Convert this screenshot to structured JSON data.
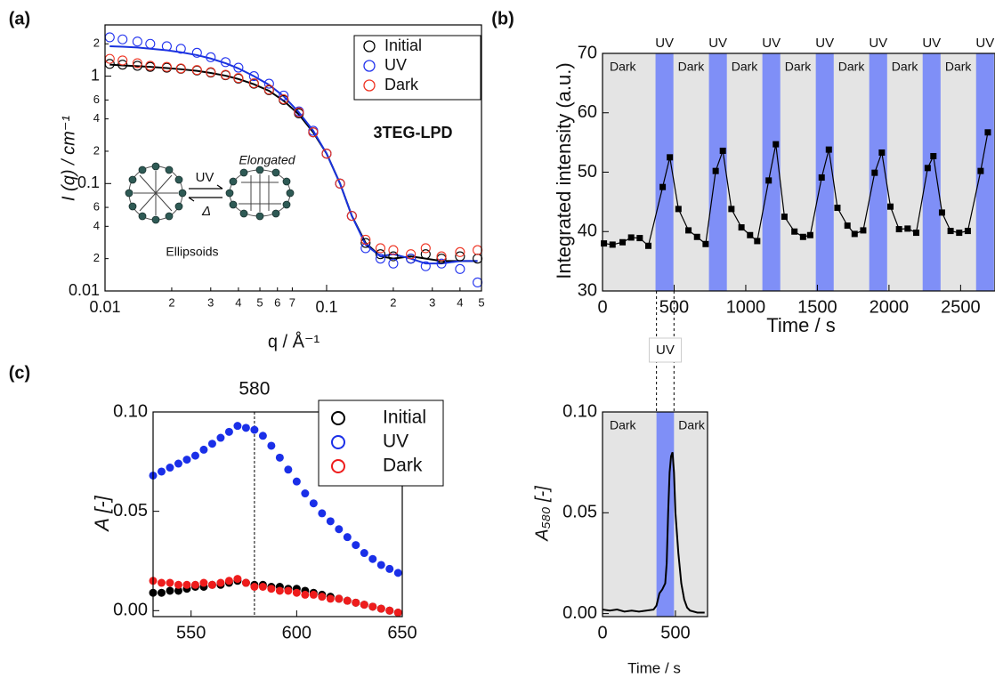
{
  "chart_data": [
    {
      "type": "scatter",
      "panel": "(a)",
      "log_scale": true,
      "marker": "open",
      "x_label": "q / Å⁻¹",
      "y_label": "I (q) / cm⁻¹",
      "label": "3TEG-LPD",
      "diagram": {
        "forward": "UV",
        "reverse": "Δ",
        "shape": "Elongated",
        "caption": "Ellipsoids"
      },
      "xlim": [
        0.01,
        0.5
      ],
      "ylim": [
        0.01,
        3
      ],
      "xticks": [
        0.01,
        {
          "value": 0.02,
          "label": "2"
        },
        {
          "value": 0.03,
          "label": "3"
        },
        {
          "value": 0.04,
          "label": "4"
        },
        {
          "value": 0.05,
          "label": "5"
        },
        {
          "value": 0.06,
          "label": "6"
        },
        {
          "value": 0.07,
          "label": "7"
        },
        0.1,
        {
          "value": 0.2,
          "label": "2"
        },
        {
          "value": 0.3,
          "label": "3"
        },
        {
          "value": 0.4,
          "label": "4"
        },
        {
          "value": 0.5,
          "label": "5"
        }
      ],
      "yticks": [
        0.01,
        {
          "value": 0.02,
          "label": "2"
        },
        {
          "value": 0.04,
          "label": "4"
        },
        {
          "value": 0.06,
          "label": "6"
        },
        0.1,
        {
          "value": 0.2,
          "label": "2"
        },
        {
          "value": 0.4,
          "label": "4"
        },
        {
          "value": 0.6,
          "label": "6"
        },
        1,
        {
          "value": 2,
          "label": "2"
        }
      ],
      "x": [
        0.0105,
        0.012,
        0.014,
        0.016,
        0.019,
        0.022,
        0.026,
        0.03,
        0.035,
        0.04,
        0.047,
        0.055,
        0.064,
        0.075,
        0.087,
        0.1,
        0.115,
        0.13,
        0.15,
        0.175,
        0.2,
        0.24,
        0.28,
        0.33,
        0.4,
        0.48
      ],
      "series": [
        {
          "name": "Initial",
          "color": "#000000",
          "values": [
            1.3,
            1.28,
            1.25,
            1.22,
            1.2,
            1.17,
            1.13,
            1.08,
            1.02,
            0.95,
            0.85,
            0.74,
            0.6,
            0.45,
            0.3,
            0.19,
            0.1,
            0.05,
            0.028,
            0.022,
            0.021,
            0.02,
            0.022,
            0.02,
            0.021,
            0.02
          ]
        },
        {
          "name": "UV",
          "color": "#2233ee",
          "values": [
            2.3,
            2.2,
            2.1,
            2.0,
            1.9,
            1.8,
            1.65,
            1.5,
            1.35,
            1.2,
            1.0,
            0.85,
            0.66,
            0.47,
            0.31,
            0.19,
            0.1,
            0.05,
            0.025,
            0.02,
            0.018,
            0.02,
            0.017,
            0.018,
            0.016,
            0.012
          ]
        },
        {
          "name": "Dark",
          "color": "#ee3322",
          "values": [
            1.45,
            1.4,
            1.32,
            1.25,
            1.22,
            1.18,
            1.14,
            1.09,
            1.03,
            0.96,
            0.86,
            0.75,
            0.61,
            0.46,
            0.3,
            0.19,
            0.1,
            0.05,
            0.03,
            0.025,
            0.024,
            0.022,
            0.025,
            0.021,
            0.023,
            0.024
          ]
        }
      ],
      "fits": [
        {
          "color": "#000000",
          "values": [
            1.28,
            1.26,
            1.24,
            1.22,
            1.19,
            1.16,
            1.12,
            1.07,
            1.01,
            0.94,
            0.84,
            0.73,
            0.59,
            0.44,
            0.3,
            0.19,
            0.1,
            0.05,
            0.028,
            0.021,
            0.02,
            0.021,
            0.02,
            0.019,
            0.019,
            0.019
          ]
        },
        {
          "color": "#1a33dd",
          "values": [
            1.9,
            1.88,
            1.85,
            1.8,
            1.74,
            1.67,
            1.57,
            1.46,
            1.32,
            1.18,
            1.0,
            0.83,
            0.65,
            0.46,
            0.31,
            0.19,
            0.1,
            0.05,
            0.027,
            0.021,
            0.022,
            0.02,
            0.018,
            0.018,
            0.019,
            0.019
          ]
        }
      ]
    },
    {
      "type": "line",
      "panel": "(b)",
      "marker": "square",
      "x_label": "Time / s",
      "y_label": "Integrated intensity (a.u.)",
      "xlim": [
        0,
        2740
      ],
      "ylim": [
        30,
        70
      ],
      "xticks": [
        0,
        500,
        1000,
        1500,
        2000,
        2500
      ],
      "yticks": [
        30,
        40,
        50,
        60,
        70
      ],
      "shade_color": "#e4e4e4",
      "band_color": "#7f8ff7",
      "bands": [
        {
          "x": [
            370,
            495
          ],
          "label": "UV"
        },
        {
          "x": [
            743,
            868
          ],
          "label": "UV"
        },
        {
          "x": [
            1116,
            1241
          ],
          "label": "UV"
        },
        {
          "x": [
            1489,
            1614
          ],
          "label": "UV"
        },
        {
          "x": [
            1862,
            1987
          ],
          "label": "UV"
        },
        {
          "x": [
            2235,
            2360
          ],
          "label": "UV"
        },
        {
          "x": [
            2608,
            2733
          ],
          "label": "UV"
        }
      ],
      "dark_labels": [
        "Dark",
        "Dark",
        "Dark",
        "Dark",
        "Dark",
        "Dark",
        "Dark"
      ],
      "x": [
        10,
        70,
        140,
        200,
        260,
        320,
        420,
        470,
        530,
        600,
        660,
        720,
        790,
        840,
        900,
        970,
        1030,
        1080,
        1160,
        1210,
        1270,
        1340,
        1400,
        1450,
        1530,
        1580,
        1640,
        1710,
        1760,
        1820,
        1900,
        1950,
        2010,
        2070,
        2130,
        2190,
        2270,
        2310,
        2370,
        2430,
        2490,
        2550,
        2640,
        2690
      ],
      "series": [
        {
          "color": "#000000",
          "values": [
            38,
            37.8,
            38.2,
            39,
            38.9,
            37.6,
            47.5,
            52.5,
            43.8,
            40.2,
            39.1,
            37.9,
            50.2,
            53.6,
            43.8,
            40.7,
            39.4,
            38.4,
            48.6,
            54.7,
            42.5,
            40,
            39.1,
            39.4,
            49.1,
            53.8,
            44,
            41,
            39.6,
            40.2,
            49.9,
            53.3,
            44.2,
            40.4,
            40.5,
            39.8,
            50.7,
            52.7,
            43.2,
            40.1,
            39.8,
            40.1,
            50.2,
            56.7
          ]
        }
      ]
    },
    {
      "type": "scatter",
      "panel": "(c)",
      "marker": "filled",
      "y_label": "A [-]",
      "vline": 580,
      "xlim": [
        532,
        650
      ],
      "ylim": [
        -0.003,
        0.1
      ],
      "xticks": [
        550,
        600,
        650
      ],
      "yticks": [
        {
          "value": 0,
          "label": "0.00"
        },
        {
          "value": 0.05,
          "label": "0.05"
        },
        {
          "value": 0.1,
          "label": "0.10"
        }
      ],
      "x": [
        532,
        536,
        540,
        544,
        548,
        552,
        556,
        560,
        564,
        568,
        572,
        576,
        580,
        584,
        588,
        592,
        596,
        600,
        604,
        608,
        612,
        616,
        620,
        624,
        628,
        632,
        636,
        640,
        644,
        648
      ],
      "series": [
        {
          "name": "Initial",
          "color": "#000000",
          "values": [
            0.009,
            0.009,
            0.01,
            0.01,
            0.011,
            0.012,
            0.012,
            0.013,
            0.013,
            0.014,
            0.015,
            0.014,
            0.013,
            0.013,
            0.012,
            0.012,
            0.011,
            0.011,
            0.01,
            0.009,
            0.008,
            0.007,
            0.006,
            0.005,
            0.004,
            0.003,
            0.002,
            0.001,
            0.0,
            -0.001
          ]
        },
        {
          "name": "UV",
          "color": "#1a2fe8",
          "values": [
            0.068,
            0.07,
            0.072,
            0.074,
            0.076,
            0.078,
            0.081,
            0.084,
            0.087,
            0.09,
            0.093,
            0.092,
            0.091,
            0.088,
            0.083,
            0.077,
            0.071,
            0.065,
            0.059,
            0.054,
            0.049,
            0.045,
            0.041,
            0.037,
            0.033,
            0.029,
            0.026,
            0.023,
            0.021,
            0.019
          ]
        },
        {
          "name": "Dark",
          "color": "#ee1c1c",
          "values": [
            0.015,
            0.014,
            0.014,
            0.013,
            0.013,
            0.013,
            0.014,
            0.013,
            0.014,
            0.015,
            0.016,
            0.014,
            0.012,
            0.012,
            0.011,
            0.01,
            0.01,
            0.009,
            0.008,
            0.008,
            0.007,
            0.006,
            0.006,
            0.005,
            0.004,
            0.003,
            0.002,
            0.001,
            0.0,
            -0.001
          ]
        }
      ]
    },
    {
      "type": "line",
      "x_label": "Time / s",
      "y_label": "A₅₈₀ [-]",
      "xlim": [
        0,
        720
      ],
      "ylim": [
        -0.0015,
        0.1
      ],
      "xticks": [
        0,
        500
      ],
      "yticks": [
        {
          "value": 0,
          "label": "0.00"
        },
        {
          "value": 0.05,
          "label": "0.05"
        },
        {
          "value": 0.1,
          "label": "0.10"
        }
      ],
      "shade_color": "#e4e4e4",
      "band_color": "#7f8ff7",
      "bands": [
        {
          "x": [
            370,
            490
          ],
          "label": "UV"
        }
      ],
      "dark_labels": [
        "Dark",
        "Dark"
      ],
      "x": [
        0,
        50,
        100,
        150,
        200,
        250,
        300,
        350,
        370,
        390,
        410,
        430,
        440,
        450,
        460,
        470,
        480,
        490,
        500,
        520,
        540,
        560,
        580,
        600,
        650,
        700
      ],
      "series": [
        {
          "color": "#000000",
          "values": [
            0.002,
            0.0015,
            0.002,
            0.001,
            0.0015,
            0.001,
            0.0015,
            0.002,
            0.004,
            0.01,
            0.012,
            0.015,
            0.025,
            0.05,
            0.07,
            0.078,
            0.08,
            0.07,
            0.05,
            0.03,
            0.015,
            0.007,
            0.003,
            0.0015,
            0.0005,
            0.0005
          ]
        }
      ]
    }
  ]
}
